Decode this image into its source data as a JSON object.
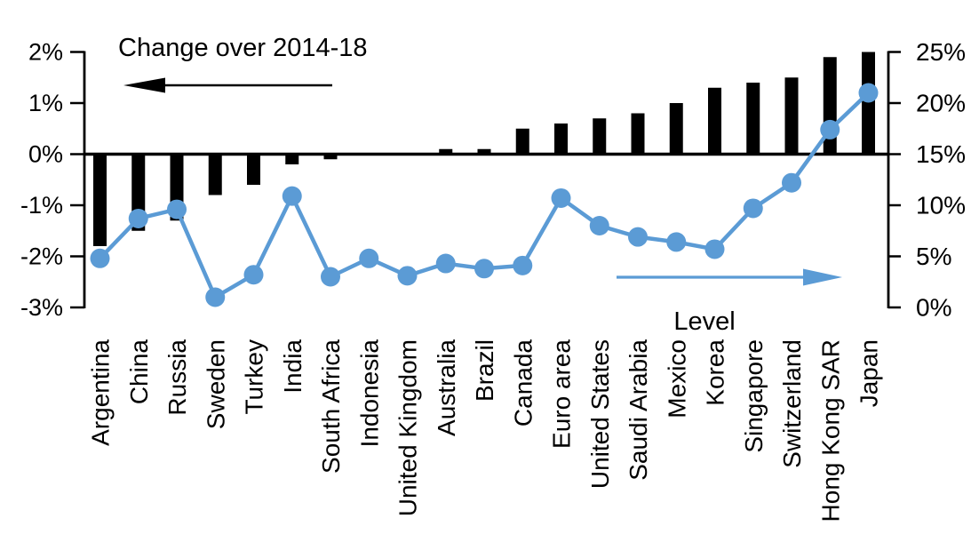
{
  "chart_data": {
    "type": "bar+line combo, dual axis",
    "background": "#FFFFFF",
    "grid": false,
    "categories": [
      "Argentina",
      "China",
      "Russia",
      "Sweden",
      "Turkey",
      "India",
      "South Africa",
      "Indonesia",
      "United Kingdom",
      "Australia",
      "Brazil",
      "Canada",
      "Euro area",
      "United States",
      "Saudi Arabia",
      "Mexico",
      "Korea",
      "Singapore",
      "Switzerland",
      "Hong Kong SAR",
      "Japan"
    ],
    "series": [
      {
        "name": "Change over 2014-18",
        "type": "bar",
        "axis": "left",
        "color": "#000000",
        "values": [
          -1.8,
          -1.5,
          -1.3,
          -0.8,
          -0.6,
          -0.2,
          -0.1,
          0,
          0,
          0.1,
          0.1,
          0.5,
          0.6,
          0.7,
          0.8,
          1.0,
          1.3,
          1.4,
          1.5,
          1.9,
          2.0
        ]
      },
      {
        "name": "Level",
        "type": "line",
        "axis": "right",
        "color": "#5B9BD5",
        "values": [
          4.8,
          8.7,
          9.6,
          1.0,
          3.2,
          10.9,
          3.0,
          4.8,
          3.1,
          4.3,
          3.8,
          4.1,
          10.7,
          8.0,
          6.9,
          6.4,
          5.7,
          9.7,
          12.2,
          17.4,
          21.0
        ]
      }
    ],
    "left_axis": {
      "min": -3,
      "max": 2,
      "tick_step": 1,
      "tick_labels": [
        "2%",
        "1%",
        "0%",
        "-1%",
        "-2%",
        "-3%"
      ]
    },
    "right_axis": {
      "min": 0,
      "max": 25,
      "tick_step": 5,
      "tick_labels": [
        "25%",
        "20%",
        "15%",
        "10%",
        "5%",
        "0%"
      ]
    },
    "annotations": [
      {
        "text": "Change over 2014-18",
        "arrow_direction": "left",
        "arrow_color": "#000000",
        "text_color": "#000000"
      },
      {
        "text": "Level",
        "arrow_direction": "right",
        "arrow_color": "#5B9BD5",
        "text_color": "#000000"
      }
    ]
  }
}
